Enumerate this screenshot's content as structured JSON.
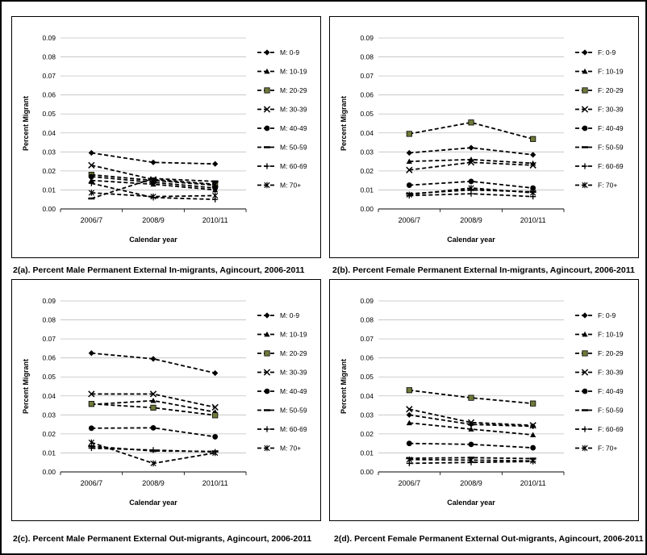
{
  "chart_data": [
    {
      "type": "line",
      "title": "",
      "xlabel": "Calendar year",
      "ylabel": "Percent Migrant",
      "ylim": [
        0,
        0.09
      ],
      "yticks": [
        "0.00",
        "0.01",
        "0.02",
        "0.03",
        "0.04",
        "0.05",
        "0.06",
        "0.07",
        "0.08",
        "0.09"
      ],
      "categories": [
        "2006/7",
        "2008/9",
        "2010/11"
      ],
      "grid": true,
      "legend_position": "right",
      "caption": "2(a). Percent Male Permanent External In-migrants, Agincourt, 2006-2011",
      "series": [
        {
          "name": "M: 0-9",
          "marker": "diamond",
          "values": [
            0.0295,
            0.0245,
            0.0237
          ]
        },
        {
          "name": "M: 10-19",
          "marker": "triangle",
          "values": [
            0.015,
            0.013,
            0.01
          ]
        },
        {
          "name": "M: 20-29",
          "marker": "square",
          "values": [
            0.018,
            0.015,
            0.0125
          ]
        },
        {
          "name": "M: 30-39",
          "marker": "x",
          "values": [
            0.023,
            0.0155,
            0.013
          ]
        },
        {
          "name": "M: 40-49",
          "marker": "circle",
          "values": [
            0.017,
            0.014,
            0.011
          ]
        },
        {
          "name": "M: 50-59",
          "marker": "dash",
          "values": [
            0.0055,
            0.016,
            0.0145
          ]
        },
        {
          "name": "M: 60-69",
          "marker": "plus",
          "values": [
            0.0135,
            0.006,
            0.005
          ]
        },
        {
          "name": "M: 70+",
          "marker": "star",
          "values": [
            0.0085,
            0.0065,
            0.007
          ]
        }
      ]
    },
    {
      "type": "line",
      "title": "",
      "xlabel": "Calendar year",
      "ylabel": "Percent Migrant",
      "ylim": [
        0,
        0.09
      ],
      "yticks": [
        "0.00",
        "0.01",
        "0.02",
        "0.03",
        "0.04",
        "0.05",
        "0.06",
        "0.07",
        "0.08",
        "0.09"
      ],
      "categories": [
        "2006/7",
        "2008/9",
        "2010/11"
      ],
      "grid": true,
      "legend_position": "right",
      "caption": "2(b). Percent Female Permanent External In-migrants, Agincourt, 2006-2011",
      "series": [
        {
          "name": "F: 0-9",
          "marker": "diamond",
          "values": [
            0.0295,
            0.0322,
            0.0285
          ]
        },
        {
          "name": "F: 10-19",
          "marker": "triangle",
          "values": [
            0.025,
            0.026,
            0.024
          ]
        },
        {
          "name": "F: 20-29",
          "marker": "square",
          "values": [
            0.0395,
            0.0455,
            0.0368
          ]
        },
        {
          "name": "F: 30-39",
          "marker": "x",
          "values": [
            0.0205,
            0.0245,
            0.023
          ]
        },
        {
          "name": "F: 40-49",
          "marker": "circle",
          "values": [
            0.0125,
            0.0145,
            0.011
          ]
        },
        {
          "name": "F: 50-59",
          "marker": "dash",
          "values": [
            0.008,
            0.01,
            0.009
          ]
        },
        {
          "name": "F: 60-69",
          "marker": "plus",
          "values": [
            0.007,
            0.008,
            0.0065
          ]
        },
        {
          "name": "F: 70+",
          "marker": "star",
          "values": [
            0.0075,
            0.011,
            0.0085
          ]
        }
      ]
    },
    {
      "type": "line",
      "title": "",
      "xlabel": "Calendar year",
      "ylabel": "Percent Migrant",
      "ylim": [
        0,
        0.09
      ],
      "yticks": [
        "0.00",
        "0.01",
        "0.02",
        "0.03",
        "0.04",
        "0.05",
        "0.06",
        "0.07",
        "0.08",
        "0.09"
      ],
      "categories": [
        "2006/7",
        "2008/9",
        "2010/11"
      ],
      "grid": true,
      "legend_position": "right",
      "caption": "2(c). Percent Male Permanent External Out-migrants, Agincourt, 2006-2011",
      "series": [
        {
          "name": "M: 0-9",
          "marker": "diamond",
          "values": [
            0.0625,
            0.0595,
            0.052
          ]
        },
        {
          "name": "M: 10-19",
          "marker": "triangle",
          "values": [
            0.0355,
            0.0375,
            0.0315
          ]
        },
        {
          "name": "M: 20-29",
          "marker": "square",
          "values": [
            0.0358,
            0.0338,
            0.0298
          ]
        },
        {
          "name": "M: 30-39",
          "marker": "x",
          "values": [
            0.041,
            0.041,
            0.034
          ]
        },
        {
          "name": "M: 40-49",
          "marker": "circle",
          "values": [
            0.023,
            0.0232,
            0.0185
          ]
        },
        {
          "name": "M: 50-59",
          "marker": "dash",
          "values": [
            0.0135,
            0.011,
            0.0108
          ]
        },
        {
          "name": "M: 60-69",
          "marker": "plus",
          "values": [
            0.0125,
            0.0115,
            0.0105
          ]
        },
        {
          "name": "M: 70+",
          "marker": "star",
          "values": [
            0.0155,
            0.0045,
            0.01
          ]
        }
      ]
    },
    {
      "type": "line",
      "title": "",
      "xlabel": "Calendar year",
      "ylabel": "Percent Migrant",
      "ylim": [
        0,
        0.09
      ],
      "yticks": [
        "0.00",
        "0.01",
        "0.02",
        "0.03",
        "0.04",
        "0.05",
        "0.06",
        "0.07",
        "0.08",
        "0.09"
      ],
      "categories": [
        "2006/7",
        "2008/9",
        "2010/11"
      ],
      "grid": true,
      "legend_position": "right",
      "caption": "2(d). Percent Female Permanent External Out-migrants, Agincourt, 2006-2011",
      "series": [
        {
          "name": "F: 0-9",
          "marker": "diamond",
          "values": [
            0.03,
            0.025,
            0.024
          ]
        },
        {
          "name": "F: 10-19",
          "marker": "triangle",
          "values": [
            0.0258,
            0.0225,
            0.0195
          ]
        },
        {
          "name": "F: 20-29",
          "marker": "square",
          "values": [
            0.043,
            0.039,
            0.036
          ]
        },
        {
          "name": "F: 30-39",
          "marker": "x",
          "values": [
            0.033,
            0.026,
            0.0245
          ]
        },
        {
          "name": "F: 40-49",
          "marker": "circle",
          "values": [
            0.015,
            0.0145,
            0.0127
          ]
        },
        {
          "name": "F: 50-59",
          "marker": "dash",
          "values": [
            0.0072,
            0.0075,
            0.007
          ]
        },
        {
          "name": "F: 60-69",
          "marker": "plus",
          "values": [
            0.0045,
            0.005,
            0.0055
          ]
        },
        {
          "name": "F: 70+",
          "marker": "star",
          "values": [
            0.0065,
            0.0062,
            0.0058
          ]
        }
      ]
    }
  ]
}
